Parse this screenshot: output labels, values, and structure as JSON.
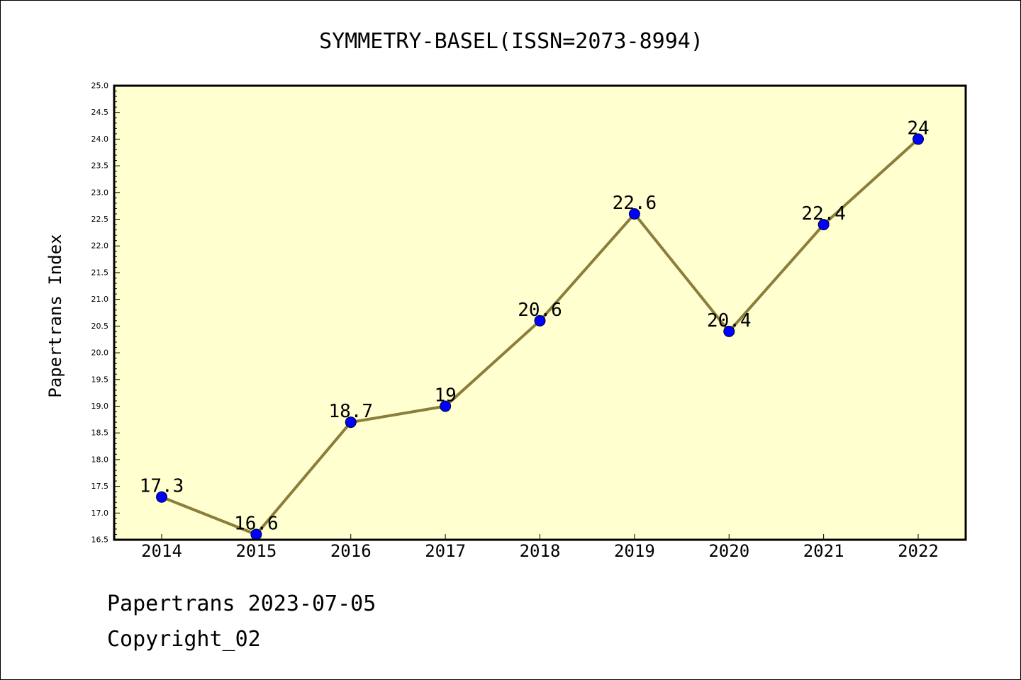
{
  "chart_data": {
    "type": "line",
    "title": "SYMMETRY-BASEL(ISSN=2073-8994)",
    "xlabel": "",
    "ylabel": "Papertrans Index",
    "categories": [
      "2014",
      "2015",
      "2016",
      "2017",
      "2018",
      "2019",
      "2020",
      "2021",
      "2022"
    ],
    "series": [
      {
        "values": [
          17.3,
          16.6,
          18.7,
          19,
          20.6,
          22.6,
          20.4,
          22.4,
          24
        ]
      }
    ],
    "data_labels": [
      "17.3",
      "16.6",
      "18.7",
      "19",
      "20.6",
      "22.6",
      "20.4",
      "22.4",
      "24"
    ],
    "ylim": [
      16.5,
      25.0
    ],
    "yticks": [
      "16.5",
      "17.0",
      "17.5",
      "18.0",
      "18.5",
      "19.0",
      "19.5",
      "20.0",
      "20.5",
      "21.0",
      "21.5",
      "22.0",
      "22.5",
      "23.0",
      "23.5",
      "24.0",
      "24.5",
      "25.0"
    ],
    "grid": false,
    "colors": {
      "plot_background": "#ffffd0",
      "line": "#8b7d3a",
      "marker": "#0000ff"
    }
  },
  "footer": {
    "line1": "Papertrans 2023-07-05",
    "line2": "Copyright_02"
  }
}
